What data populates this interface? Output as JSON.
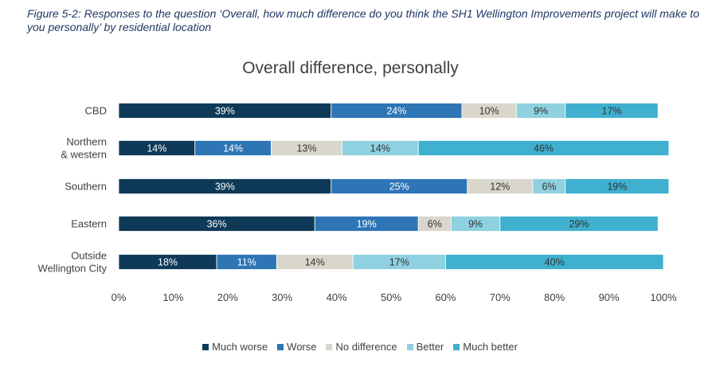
{
  "caption": "Figure 5-2: Responses to the question ‘Overall, how much difference do you think the SH1 Wellington Improvements project will make to you personally’ by residential location",
  "chart_data": {
    "type": "bar",
    "orientation": "horizontal",
    "stacked": true,
    "title": "Overall difference, personally",
    "categories": [
      "CBD",
      "Northern\n& western",
      "Southern",
      "Eastern",
      "Outside\nWellington City"
    ],
    "series": [
      {
        "name": "Much worse",
        "color": "#0e3a57",
        "values": [
          39,
          14,
          39,
          36,
          18
        ]
      },
      {
        "name": "Worse",
        "color": "#2e75b6",
        "values": [
          24,
          14,
          25,
          19,
          11
        ]
      },
      {
        "name": "No difference",
        "color": "#d9d6cc",
        "values": [
          10,
          13,
          12,
          6,
          14
        ]
      },
      {
        "name": "Better",
        "color": "#8fd1e0",
        "values": [
          9,
          14,
          6,
          9,
          17
        ]
      },
      {
        "name": "Much better",
        "color": "#3fb0cf",
        "values": [
          17,
          46,
          19,
          29,
          40
        ]
      }
    ],
    "labels": [
      [
        "39%",
        "24%",
        "10%",
        "9%",
        "17%"
      ],
      [
        "14%",
        "14%",
        "13%",
        "14%",
        "46%"
      ],
      [
        "39%",
        "25%",
        "12%",
        "6%",
        "19%"
      ],
      [
        "36%",
        "19%",
        "6%",
        "9%",
        "29%"
      ],
      [
        "18%",
        "11%",
        "14%",
        "17%",
        "40%"
      ]
    ],
    "xticks": [
      "0%",
      "10%",
      "20%",
      "30%",
      "40%",
      "50%",
      "60%",
      "70%",
      "80%",
      "90%",
      "100%"
    ],
    "xlim": [
      0,
      100
    ],
    "grid": false,
    "legend_position": "bottom"
  }
}
